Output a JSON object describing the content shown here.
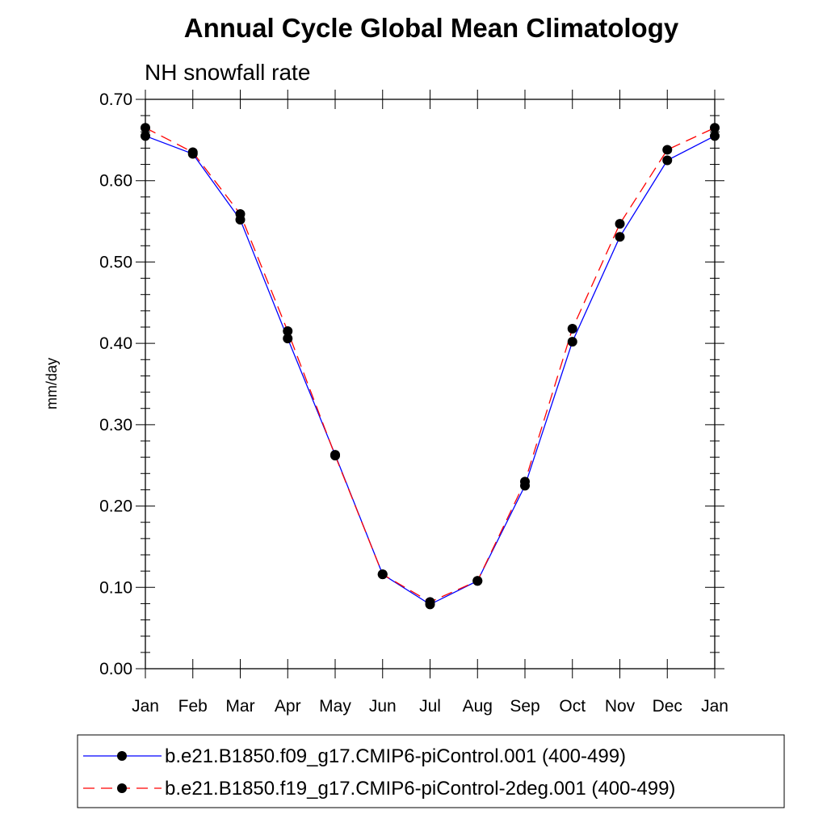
{
  "colors": {
    "series1": "#0000ff",
    "series2": "#ff0000",
    "marker": "#000000",
    "axis": "#000000"
  },
  "chart_data": {
    "type": "line",
    "title": "Annual Cycle Global Mean Climatology",
    "subtitle": "NH snowfall rate",
    "xlabel": "",
    "ylabel": "mm/day",
    "categories": [
      "Jan",
      "Feb",
      "Mar",
      "Apr",
      "May",
      "Jun",
      "Jul",
      "Aug",
      "Sep",
      "Oct",
      "Nov",
      "Dec",
      "Jan"
    ],
    "ylim": [
      0,
      0.7
    ],
    "yticks": [
      "0.00",
      "0.10",
      "0.20",
      "0.30",
      "0.40",
      "0.50",
      "0.60",
      "0.70"
    ],
    "grid": false,
    "legend_position": "bottom",
    "series": [
      {
        "name": "b.e21.B1850.f09_g17.CMIP6-piControl.001 (400-499)",
        "color": "#0000ff",
        "dash": "solid",
        "values": [
          0.655,
          0.633,
          0.552,
          0.406,
          0.263,
          0.116,
          0.079,
          0.108,
          0.225,
          0.402,
          0.531,
          0.625,
          0.655
        ]
      },
      {
        "name": "b.e21.B1850.f19_g17.CMIP6-piControl-2deg.001 (400-499)",
        "color": "#ff0000",
        "dash": "dashed",
        "values": [
          0.665,
          0.635,
          0.559,
          0.415,
          0.262,
          0.116,
          0.082,
          0.108,
          0.23,
          0.418,
          0.547,
          0.638,
          0.665
        ]
      }
    ]
  }
}
